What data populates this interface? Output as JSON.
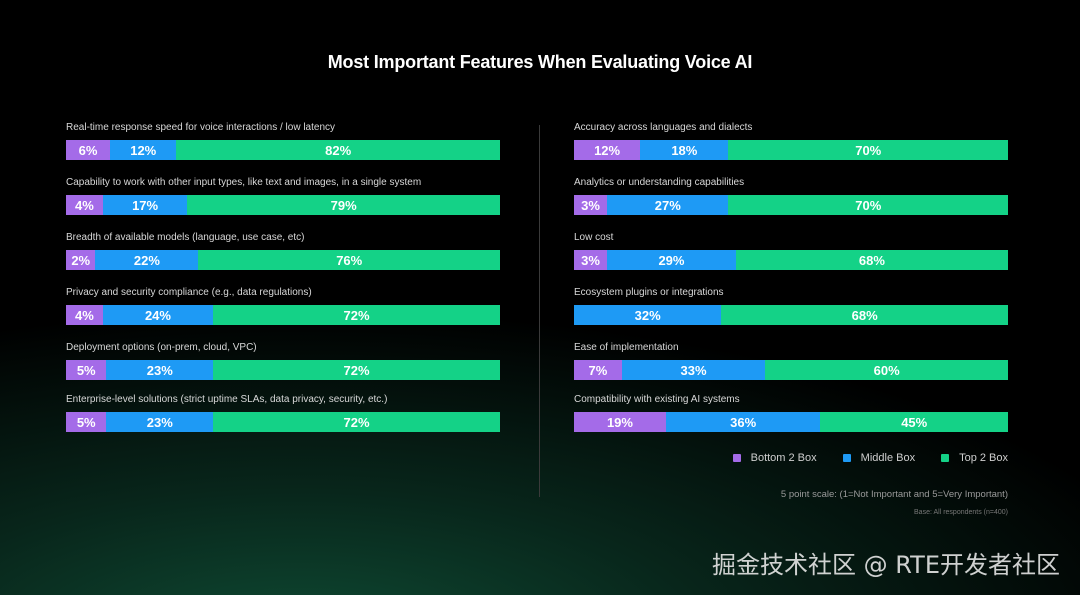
{
  "chart_data": {
    "type": "bar",
    "subtype": "stacked-horizontal-100",
    "title": "Most Important Features When Evaluating Voice AI",
    "series_names": [
      "Bottom 2 Box",
      "Middle Box",
      "Top 2 Box"
    ],
    "colors": [
      "#a46be8",
      "#1e9af5",
      "#14d287"
    ],
    "left": [
      {
        "label": "Real-time response speed for voice interactions / low latency",
        "values": [
          6,
          12,
          82
        ]
      },
      {
        "label": "Capability to work with other input types, like text and images, in a single system",
        "values": [
          4,
          17,
          79
        ]
      },
      {
        "label": "Breadth of available models (language, use case, etc)",
        "values": [
          2,
          22,
          76
        ]
      },
      {
        "label": "Privacy and security compliance (e.g., data regulations)",
        "values": [
          4,
          24,
          72
        ]
      },
      {
        "label": "Deployment options (on-prem, cloud, VPC)",
        "values": [
          5,
          23,
          72
        ]
      },
      {
        "label": "Enterprise-level solutions (strict uptime SLAs, data privacy, security, etc.)",
        "values": [
          5,
          23,
          72
        ]
      }
    ],
    "right": [
      {
        "label": "Accuracy across languages and dialects",
        "values": [
          12,
          18,
          70
        ]
      },
      {
        "label": "Analytics or understanding capabilities",
        "values": [
          3,
          27,
          70
        ]
      },
      {
        "label": "Low cost",
        "values": [
          3,
          29,
          68
        ]
      },
      {
        "label": "Ecosystem plugins or integrations",
        "values": [
          0,
          32,
          68
        ]
      },
      {
        "label": "Ease of implementation",
        "values": [
          7,
          33,
          60
        ]
      },
      {
        "label": "Compatibility with existing AI systems",
        "values": [
          19,
          36,
          45
        ]
      }
    ],
    "scale_note": "5 point scale: (1=Not Important and 5=Very Important)",
    "base_note": "Base: All respondents (n=400)"
  },
  "watermark": "掘金技术社区 @ RTE开发者社区"
}
